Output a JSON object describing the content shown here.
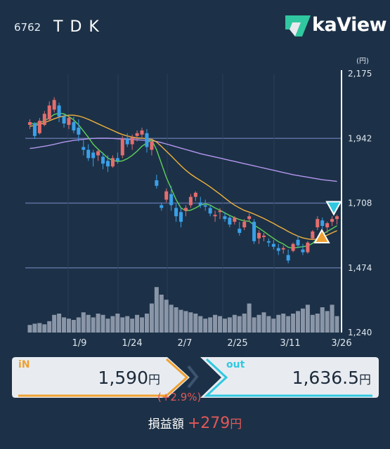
{
  "header": {
    "code": "6762",
    "name": "TDK",
    "brand": "kaView"
  },
  "colors": {
    "background": "#1c3147",
    "up": "#e56d6d",
    "down": "#3aa0e8",
    "ma_short": "#5fd15a",
    "ma_mid": "#f2b13c",
    "ma_long": "#b596f0",
    "volume": "#8a96a8",
    "in_accent": "#f0a030",
    "out_accent": "#30c8e0",
    "profit": "#e05858"
  },
  "chart_data": {
    "type": "candlestick",
    "unit": "(円)",
    "y_ticks": [
      "2,175",
      "1,942",
      "1,708",
      "1,474",
      "1,240"
    ],
    "ylim": [
      1240,
      2175
    ],
    "x_tick_labels": [
      "1/9",
      "1/24",
      "2/7",
      "2/25",
      "3/11",
      "3/26"
    ],
    "candles": [
      [
        1990,
        2010,
        1975,
        2000
      ],
      [
        1995,
        2000,
        1940,
        1950
      ],
      [
        1960,
        2015,
        1955,
        2005
      ],
      [
        1990,
        2040,
        1985,
        2030
      ],
      [
        2010,
        2075,
        2005,
        2060
      ],
      [
        2045,
        2090,
        2035,
        2080
      ],
      [
        2060,
        2070,
        2000,
        2020
      ],
      [
        2020,
        2030,
        1980,
        1995
      ],
      [
        1990,
        2025,
        1975,
        2015
      ],
      [
        2000,
        2020,
        1960,
        1970
      ],
      [
        1980,
        2010,
        1930,
        1955
      ],
      [
        1910,
        1940,
        1880,
        1900
      ],
      [
        1900,
        1920,
        1860,
        1870
      ],
      [
        1890,
        1900,
        1840,
        1870
      ],
      [
        1880,
        1900,
        1860,
        1895
      ],
      [
        1875,
        1890,
        1830,
        1850
      ],
      [
        1860,
        1880,
        1820,
        1840
      ],
      [
        1840,
        1880,
        1835,
        1870
      ],
      [
        1870,
        1890,
        1850,
        1860
      ],
      [
        1880,
        1950,
        1870,
        1940
      ],
      [
        1940,
        1960,
        1910,
        1920
      ],
      [
        1920,
        1955,
        1900,
        1945
      ],
      [
        1950,
        1970,
        1930,
        1960
      ],
      [
        1955,
        1980,
        1945,
        1970
      ],
      [
        1960,
        1975,
        1890,
        1910
      ],
      [
        1900,
        1940,
        1880,
        1930
      ],
      [
        1790,
        1810,
        1760,
        1770
      ],
      [
        1700,
        1710,
        1680,
        1690
      ],
      [
        1720,
        1760,
        1710,
        1750
      ],
      [
        1740,
        1770,
        1680,
        1700
      ],
      [
        1690,
        1705,
        1640,
        1660
      ],
      [
        1675,
        1690,
        1620,
        1640
      ],
      [
        1680,
        1700,
        1660,
        1690
      ],
      [
        1700,
        1740,
        1690,
        1730
      ],
      [
        1730,
        1750,
        1715,
        1745
      ],
      [
        1710,
        1730,
        1690,
        1700
      ],
      [
        1700,
        1720,
        1680,
        1695
      ],
      [
        1690,
        1700,
        1660,
        1670
      ],
      [
        1660,
        1680,
        1640,
        1665
      ],
      [
        1675,
        1690,
        1650,
        1680
      ],
      [
        1660,
        1675,
        1640,
        1650
      ],
      [
        1655,
        1665,
        1620,
        1630
      ],
      [
        1640,
        1660,
        1630,
        1655
      ],
      [
        1615,
        1640,
        1590,
        1600
      ],
      [
        1620,
        1650,
        1610,
        1640
      ],
      [
        1650,
        1670,
        1640,
        1660
      ],
      [
        1640,
        1650,
        1560,
        1570
      ],
      [
        1580,
        1610,
        1560,
        1600
      ],
      [
        1585,
        1600,
        1570,
        1590
      ],
      [
        1570,
        1580,
        1550,
        1565
      ],
      [
        1560,
        1575,
        1540,
        1550
      ],
      [
        1545,
        1560,
        1520,
        1535
      ],
      [
        1540,
        1555,
        1525,
        1545
      ],
      [
        1520,
        1540,
        1490,
        1500
      ],
      [
        1535,
        1565,
        1530,
        1560
      ],
      [
        1575,
        1590,
        1545,
        1555
      ],
      [
        1540,
        1560,
        1520,
        1530
      ],
      [
        1530,
        1570,
        1525,
        1565
      ],
      [
        1580,
        1610,
        1575,
        1605
      ],
      [
        1620,
        1660,
        1610,
        1650
      ],
      [
        1645,
        1655,
        1615,
        1625
      ],
      [
        1620,
        1640,
        1600,
        1635
      ],
      [
        1640,
        1660,
        1625,
        1650
      ],
      [
        1650,
        1665,
        1630,
        1660
      ]
    ],
    "ma_short": [
      1996,
      1994,
      1998,
      2005,
      2015,
      2028,
      2032,
      2030,
      2020,
      2008,
      1990,
      1968,
      1945,
      1920,
      1902,
      1887,
      1870,
      1862,
      1858,
      1860,
      1868,
      1880,
      1895,
      1913,
      1925,
      1936,
      1900,
      1850,
      1800,
      1760,
      1720,
      1690,
      1680,
      1682,
      1690,
      1700,
      1705,
      1700,
      1690,
      1682,
      1672,
      1663,
      1655,
      1648,
      1643,
      1642,
      1628,
      1617,
      1605,
      1592,
      1580,
      1568,
      1560,
      1548,
      1545,
      1548,
      1550,
      1553,
      1562,
      1580,
      1595,
      1605,
      1615,
      1626
    ],
    "ma_mid": [
      1985,
      1988,
      1992,
      1998,
      2005,
      2012,
      2018,
      2022,
      2025,
      2025,
      2022,
      2017,
      2010,
      2002,
      1994,
      1986,
      1978,
      1970,
      1962,
      1955,
      1950,
      1946,
      1943,
      1942,
      1940,
      1938,
      1928,
      1912,
      1895,
      1878,
      1860,
      1842,
      1826,
      1812,
      1800,
      1789,
      1778,
      1766,
      1753,
      1740,
      1726,
      1712,
      1700,
      1690,
      1681,
      1675,
      1668,
      1660,
      1652,
      1643,
      1634,
      1624,
      1615,
      1605,
      1596,
      1588,
      1582,
      1578,
      1576,
      1578,
      1584,
      1592,
      1600,
      1608
    ],
    "ma_long": [
      1905,
      1907,
      1910,
      1913,
      1916,
      1920,
      1924,
      1928,
      1931,
      1934,
      1936,
      1938,
      1940,
      1941,
      1942,
      1942,
      1942,
      1941,
      1940,
      1939,
      1938,
      1937,
      1936,
      1935,
      1934,
      1933,
      1930,
      1926,
      1921,
      1916,
      1911,
      1906,
      1901,
      1896,
      1891,
      1886,
      1882,
      1878,
      1874,
      1870,
      1866,
      1862,
      1858,
      1854,
      1850,
      1846,
      1842,
      1838,
      1834,
      1830,
      1826,
      1822,
      1818,
      1814,
      1810,
      1807,
      1804,
      1801,
      1798,
      1795,
      1792,
      1790,
      1788,
      1786
    ],
    "volume": [
      12,
      14,
      15,
      13,
      18,
      28,
      30,
      24,
      22,
      20,
      24,
      32,
      28,
      24,
      30,
      28,
      22,
      26,
      30,
      24,
      26,
      22,
      28,
      24,
      30,
      46,
      72,
      60,
      52,
      44,
      40,
      36,
      34,
      32,
      30,
      26,
      22,
      24,
      28,
      26,
      22,
      24,
      28,
      26,
      30,
      46,
      24,
      28,
      32,
      26,
      22,
      28,
      30,
      26,
      30,
      34,
      38,
      44,
      28,
      30,
      40,
      34,
      44,
      26
    ]
  },
  "trade": {
    "in_label": "iN",
    "in_price": "1,590",
    "out_label": "out",
    "out_price": "1,636.5",
    "yen": "円",
    "change_pct": "(+2.9%)",
    "pnl_label": "損益額",
    "pnl_value": "+279"
  }
}
